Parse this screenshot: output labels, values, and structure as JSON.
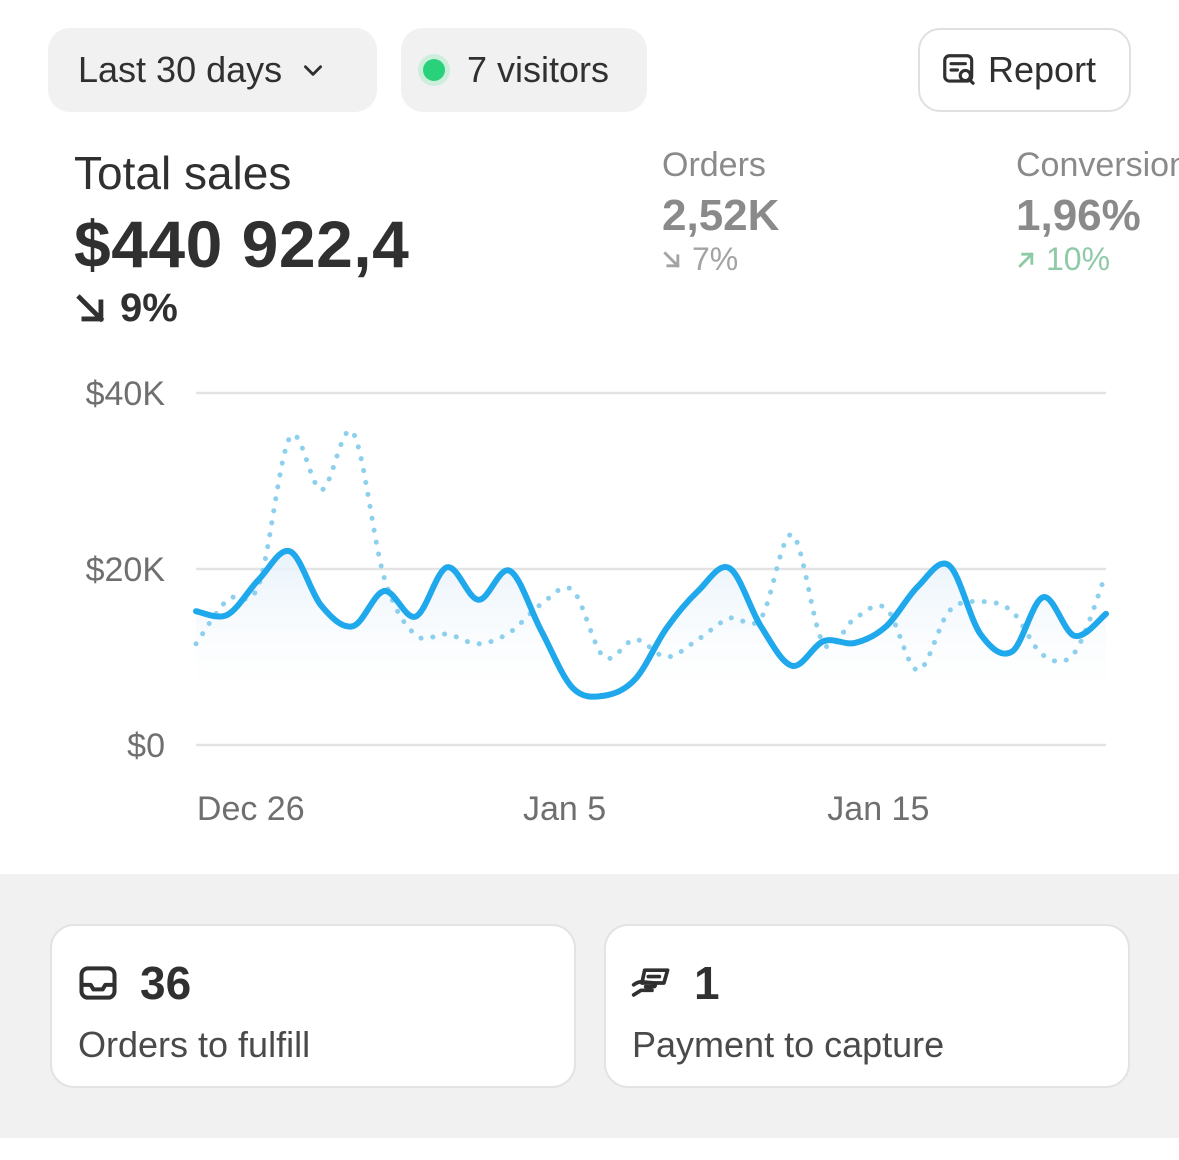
{
  "toolbar": {
    "date_range_label": "Last 30 days",
    "visitors_label": "7 visitors",
    "report_label": "Report"
  },
  "metrics": {
    "total_sales": {
      "label": "Total sales",
      "value": "$440 922,4",
      "change": "9%",
      "direction": "down"
    },
    "orders": {
      "label": "Orders",
      "value": "2,52K",
      "change": "7%",
      "direction": "down"
    },
    "conversion": {
      "label": "Conversion",
      "value": "1,96%",
      "change": "10%",
      "direction": "up"
    }
  },
  "colors": {
    "primary_line": "#1fa8eb",
    "comparison_line": "#8dd0ee",
    "live_dot": "#29d17b",
    "up_trend": "#8fcaa6"
  },
  "chart_data": {
    "type": "line",
    "x_tick_labels": [
      "Dec 26",
      "Jan 5",
      "Jan 15"
    ],
    "y_tick_labels": [
      "$40K",
      "$20K",
      "$0"
    ],
    "ylim": [
      0,
      40000
    ],
    "x_start": "Dec 24",
    "x_end": "Jan 23",
    "grid": true,
    "series": [
      {
        "style": "solid",
        "values": [
          15200,
          14800,
          18800,
          22000,
          15800,
          13500,
          17500,
          14600,
          20200,
          16500,
          19800,
          13000,
          6500,
          5600,
          7500,
          13300,
          17500,
          20100,
          13500,
          9000,
          11800,
          11600,
          13500,
          18000,
          20400,
          12600,
          10600,
          16800,
          12400,
          14900
        ]
      },
      {
        "style": "dotted",
        "values": [
          11500,
          16500,
          18200,
          35000,
          29000,
          35500,
          19000,
          12500,
          12600,
          11500,
          12800,
          16000,
          17600,
          10000,
          12000,
          10000,
          12000,
          14400,
          14400,
          23900,
          11500,
          14400,
          15500,
          8500,
          15200,
          16300,
          15200,
          10200,
          10500,
          19500
        ]
      }
    ]
  },
  "cards": {
    "fulfill": {
      "value": "36",
      "label": "Orders to fulfill"
    },
    "payment": {
      "value": "1",
      "label": "Payment to capture"
    }
  }
}
